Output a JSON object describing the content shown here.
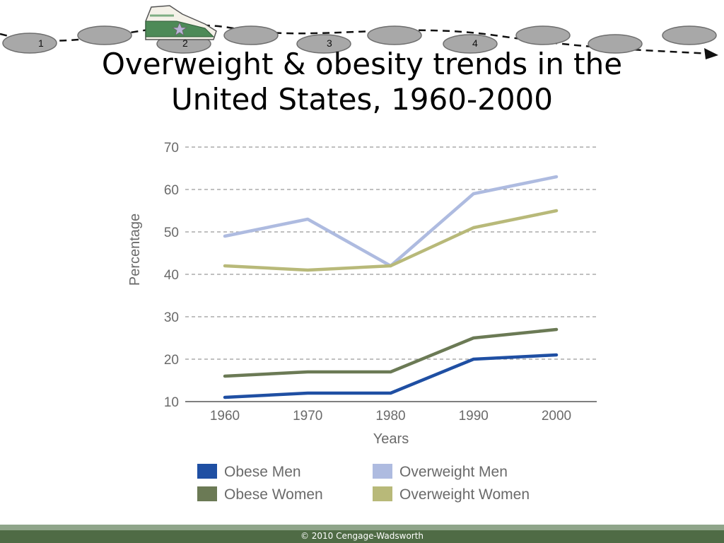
{
  "header": {
    "steps": [
      "1",
      "2",
      "3",
      "4"
    ]
  },
  "slide": {
    "title_line1": "Overweight & obesity trends in the",
    "title_line2": "United States, 1960-2000"
  },
  "chart_data": {
    "type": "line",
    "title": "",
    "xlabel": "Years",
    "ylabel": "Percentage",
    "x": [
      1960,
      1970,
      1980,
      1990,
      2000
    ],
    "ylim": [
      10,
      70
    ],
    "yticks": [
      10,
      20,
      30,
      40,
      50,
      60,
      70
    ],
    "grid": "horizontal dashed",
    "legend_position": "bottom",
    "series": [
      {
        "name": "Obese Men",
        "values": [
          11,
          12,
          12,
          20,
          21
        ],
        "color": "#1f4fa3"
      },
      {
        "name": "Obese Women",
        "values": [
          16,
          17,
          17,
          25,
          27
        ],
        "color": "#6b7a55"
      },
      {
        "name": "Overweight Men",
        "values": [
          49,
          53,
          42,
          59,
          63
        ],
        "color": "#aebbe0"
      },
      {
        "name": "Overweight Women",
        "values": [
          42,
          41,
          42,
          51,
          55
        ],
        "color": "#b8b979"
      }
    ]
  },
  "footer": {
    "copyright": "© 2010 Cengage-Wadsworth"
  }
}
